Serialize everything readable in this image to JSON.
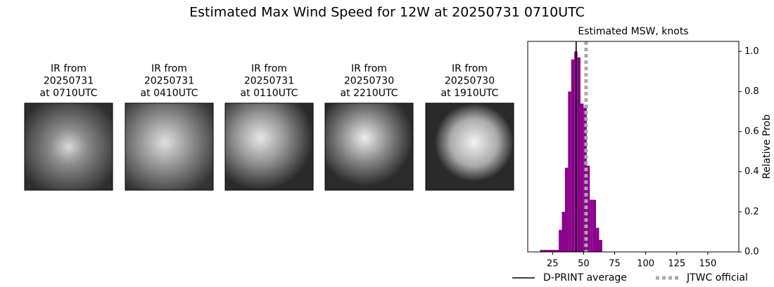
{
  "title": "Estimated Max Wind Speed for 12W at 20250731 0710UTC",
  "panels": [
    {
      "lines": [
        "IR from",
        "20250731",
        "at 0710UTC"
      ]
    },
    {
      "lines": [
        "IR from",
        "20250731",
        "at 0410UTC"
      ]
    },
    {
      "lines": [
        "IR from",
        "20250731",
        "at 0110UTC"
      ]
    },
    {
      "lines": [
        "IR from",
        "20250730",
        "at 2210UTC"
      ]
    },
    {
      "lines": [
        "IR from",
        "20250730",
        "at 1910UTC"
      ]
    }
  ],
  "chart_data": {
    "type": "histogram",
    "title": "Estimated MSW, knots",
    "y_label": "Relative Prob",
    "bins": [
      15,
      17.5,
      20,
      22.5,
      25,
      27.5,
      30,
      32.5,
      35,
      37.5,
      40,
      42.5,
      45,
      47.5,
      50,
      52.5,
      55,
      57.5,
      60,
      62.5,
      65
    ],
    "values": [
      0.01,
      0.01,
      0.01,
      0.01,
      0.01,
      0.01,
      0.11,
      0.2,
      0.42,
      0.8,
      0.96,
      1.0,
      0.97,
      0.74,
      0.72,
      0.43,
      0.26,
      0.26,
      0.12,
      0.06
    ],
    "color": "#8b008b",
    "xlim": [
      5,
      175
    ],
    "ylim": [
      0,
      1.05
    ],
    "xticks": [
      25,
      50,
      75,
      100,
      125,
      150
    ],
    "yticks": [
      {
        "value": 0,
        "label": "0.0"
      },
      0.2,
      0.4,
      0.6,
      0.8,
      {
        "value": 1,
        "label": "1.0"
      }
    ],
    "lines": [
      {
        "name": "D-PRINT average",
        "value": 44,
        "color": "#000000",
        "style": "solid"
      },
      {
        "name": "JTWC official",
        "value": 52,
        "color": "#a9a9a9",
        "style": "dotted"
      }
    ]
  }
}
